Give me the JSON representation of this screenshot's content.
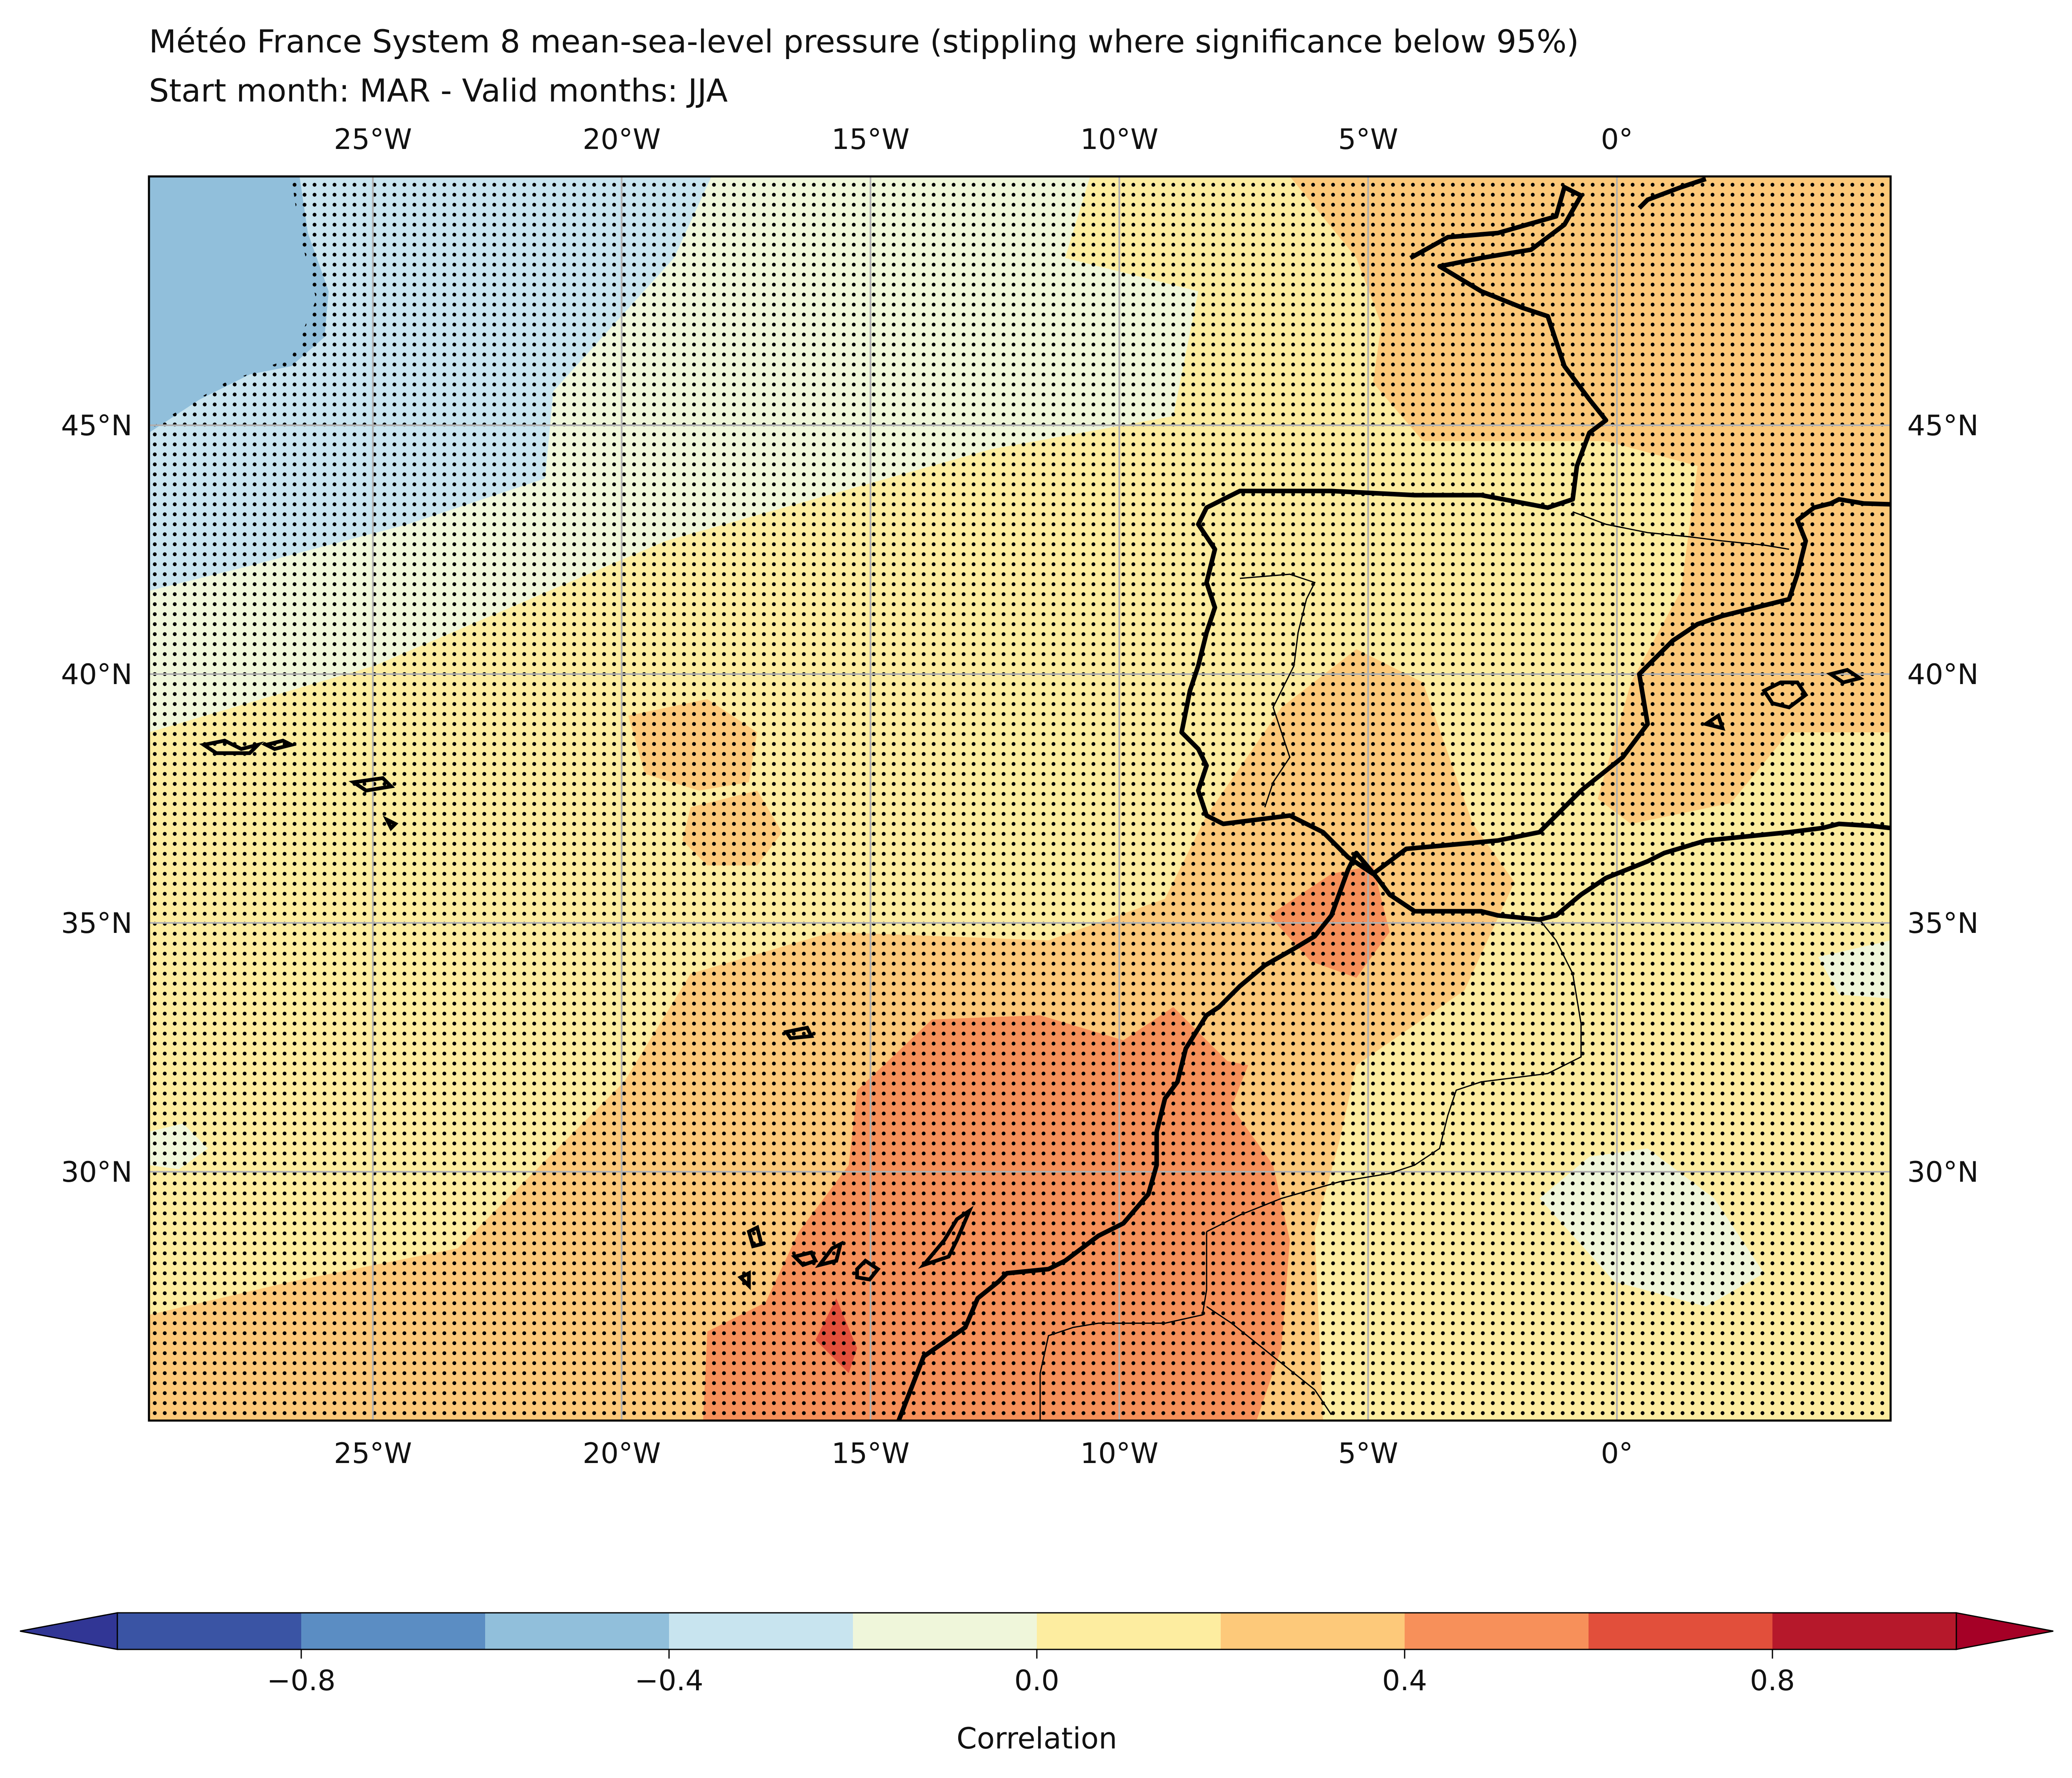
{
  "title": {
    "line1": "Météo France System 8 mean-sea-level pressure (stippling where significance below 95%)",
    "line2": "Start month: MAR - Valid months: JJA"
  },
  "map": {
    "lon_range": [
      -29.5,
      5.5
    ],
    "lat_range": [
      25.0,
      50.0
    ],
    "lon_ticks": [
      {
        "value": -25,
        "label": "25°W"
      },
      {
        "value": -20,
        "label": "20°W"
      },
      {
        "value": -15,
        "label": "15°W"
      },
      {
        "value": -10,
        "label": "10°W"
      },
      {
        "value": -5,
        "label": "5°W"
      },
      {
        "value": 0,
        "label": "0°"
      }
    ],
    "lat_ticks": [
      {
        "value": 45,
        "label": "45°N"
      },
      {
        "value": 40,
        "label": "40°N"
      },
      {
        "value": 35,
        "label": "35°N"
      },
      {
        "value": 30,
        "label": "30°N"
      }
    ],
    "gridlines": true,
    "stippling": true
  },
  "colorbar": {
    "label": "Correlation",
    "bounds": [
      -1.0,
      -0.8,
      -0.6,
      -0.4,
      -0.2,
      0.0,
      0.2,
      0.4,
      0.6,
      0.8,
      1.0
    ],
    "colors": [
      "#3a54a4",
      "#5b8dc3",
      "#91bfdb",
      "#c8e4ef",
      "#eff6da",
      "#fdeda0",
      "#fdc97a",
      "#f7905a",
      "#e24f3b",
      "#b6182b"
    ],
    "extend_low_color": "#313695",
    "extend_high_color": "#a50026",
    "ticks": [
      {
        "value": -0.8,
        "label": "−0.8"
      },
      {
        "value": -0.4,
        "label": "−0.4"
      },
      {
        "value": 0.0,
        "label": "0.0"
      },
      {
        "value": 0.4,
        "label": "0.4"
      },
      {
        "value": 0.8,
        "label": "0.8"
      }
    ]
  }
}
